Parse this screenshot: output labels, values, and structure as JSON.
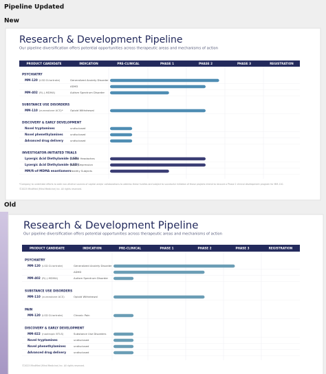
{
  "header": {
    "title": "Pipeline Updated"
  },
  "slides": [
    {
      "label": "New",
      "title": "Research & Development Pipeline",
      "subtitle": "Our pipeline diversification offers potential opportunities across therapeutic areas and mechanisms of action",
      "columns": [
        "PRODUCT CANDIDATE",
        "INDICATION",
        "PRE-CLINICAL",
        "PHASE 1",
        "PHASE 2",
        "PHASE 3",
        "REGISTRATION"
      ],
      "groups": [
        {
          "name": "PSYCHIATRY",
          "color": "#4f8db3",
          "rows": [
            {
              "candidate": "MM-120",
              "detail": "(LSD D-tartrate)",
              "indication": "Generalized Anxiety Disorder",
              "progress": 2.85
            },
            {
              "indication": "ADHD",
              "progress": 2.5
            },
            {
              "candidate": "MM-402",
              "detail": "(R(-)-MDMA)",
              "indication": "Autism Spectrum Disorder",
              "progress": 1.55
            }
          ]
        },
        {
          "name": "SUBSTANCE USE DISORDERS",
          "color": "#4f8db3",
          "rows": [
            {
              "candidate": "MM-110",
              "detail": "(zuranolone ACS)*",
              "indication": "Opioid Withdrawal",
              "progress": 2.5
            }
          ]
        },
        {
          "name": "DISCOVERY & EARLY DEVELOPMENT",
          "color": "#4f8db3",
          "rows": [
            {
              "candidate": "Novel tryptamines",
              "indication": "undisclosed",
              "progress": 0.6
            },
            {
              "candidate": "Novel phenethylamines",
              "indication": "undisclosed",
              "progress": 0.6
            },
            {
              "candidate": "Advanced drug delivery",
              "indication": "undisclosed",
              "progress": 0.6
            }
          ]
        },
        {
          "name": "INVESTIGATOR-INITIATED TRIALS",
          "color": "#3a3d74",
          "rows": [
            {
              "candidate": "Lysergic Acid Diethylamide (LSD)",
              "indication": "Cluster Headaches",
              "progress": 2.5
            },
            {
              "candidate": "Lysergic Acid Diethylamide (LSD)",
              "indication": "Major Depression",
              "progress": 2.5
            },
            {
              "candidate": "MM/R-of-MDMA enantiomers",
              "indication": "Healthy Subjects",
              "progress": 1.55
            }
          ]
        }
      ],
      "footnotes": [
        "*Company to undertake efforts to seek non-dilutive sources of capital and/or collaborations to address these hurdles and subject to successful initiation of those projects intend to recount a Phase 2 clinical development program for MM-110.",
        "©2023 MindMed (Mind Medicine) Inc. All rights reserved."
      ]
    },
    {
      "label": "Old",
      "title": "Research & Development Pipeline",
      "subtitle": "Our pipeline diversification offers potential opportunities across therapeutic areas and mechanisms of action",
      "columns": [
        "PRODUCT CANDIDATE",
        "INDICATION",
        "PRE-CLINICAL",
        "PHASE 1",
        "PHASE 2",
        "PHASE 3",
        "REGISTRATION"
      ],
      "groups": [
        {
          "name": "PSYCHIATRY",
          "color": "#6a9db5",
          "rows": [
            {
              "candidate": "MM-120",
              "detail": "(LSD D-tartrate)",
              "indication": "Generalized Anxiety Disorder",
              "progress": 3.3
            },
            {
              "indication": "ADHD",
              "progress": 2.5
            },
            {
              "candidate": "MM-402",
              "detail": "(R(-)-MDMA)",
              "indication": "Autism Spectrum Disorder",
              "progress": 0.6
            }
          ]
        },
        {
          "name": "SUBSTANCE USE DISORDERS",
          "color": "#6a9db5",
          "rows": [
            {
              "candidate": "MM-110",
              "detail": "(zuranolone ACS)",
              "indication": "Opioid Withdrawal",
              "progress": 2.5
            }
          ]
        },
        {
          "name": "PAIN",
          "color": "#6a9db5",
          "rows": [
            {
              "candidate": "MM-120",
              "detail": "(LSD D-tartrate)",
              "indication": "Chronic Pain",
              "progress": 0.6
            }
          ]
        },
        {
          "name": "DISCOVERY & EARLY DEVELOPMENT",
          "color": "#6a9db5",
          "rows": [
            {
              "candidate": "MM-822",
              "detail": "(nootropic BTLS)",
              "indication": "Substance Use Disorders",
              "progress": 0.6
            },
            {
              "candidate": "Novel tryptamines",
              "indication": "undisclosed",
              "progress": 0.6
            },
            {
              "candidate": "Novel phenethylamines",
              "indication": "undisclosed",
              "progress": 0.6
            },
            {
              "candidate": "Advanced drug delivery",
              "indication": "undisclosed",
              "progress": 0.6
            }
          ]
        }
      ],
      "footnotes": [
        "©2023 MindMed (Mind Medicine) Inc. All rights reserved."
      ]
    }
  ]
}
